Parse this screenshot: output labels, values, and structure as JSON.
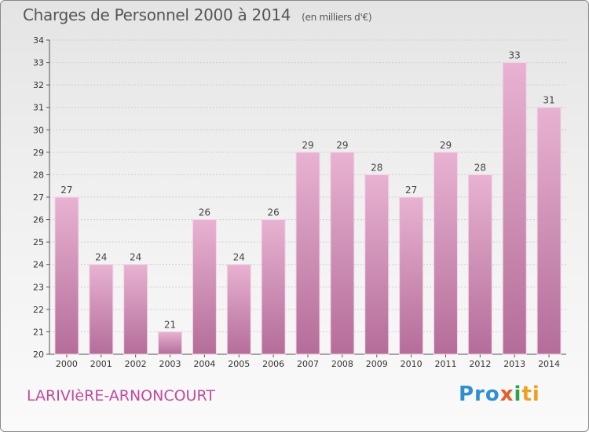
{
  "title": "Charges de Personnel 2000 à 2014",
  "subtitle": "(en milliers d'€)",
  "commune": "LARIVIèRE-ARNONCOURT",
  "logo": {
    "p1": "Pro",
    "p2": "x",
    "p3": "i",
    "p4": "ti"
  },
  "colors": {
    "bar_light": "#e8b2d2",
    "bar_dark": "#b46d99",
    "title": "#555555",
    "commune": "#c04a9a"
  },
  "chart_data": {
    "type": "bar",
    "title": "Charges de Personnel 2000 à 2014",
    "subtitle": "(en milliers d'€)",
    "categories": [
      "2000",
      "2001",
      "2002",
      "2003",
      "2004",
      "2005",
      "2006",
      "2007",
      "2008",
      "2009",
      "2010",
      "2011",
      "2012",
      "2013",
      "2014"
    ],
    "values": [
      27,
      24,
      24,
      21,
      26,
      24,
      26,
      29,
      29,
      28,
      27,
      29,
      28,
      33,
      31
    ],
    "ylim": [
      20,
      34
    ],
    "yticks": [
      20,
      21,
      22,
      23,
      24,
      25,
      26,
      27,
      28,
      29,
      30,
      31,
      32,
      33,
      34
    ],
    "grid": true,
    "data_labels": true
  }
}
